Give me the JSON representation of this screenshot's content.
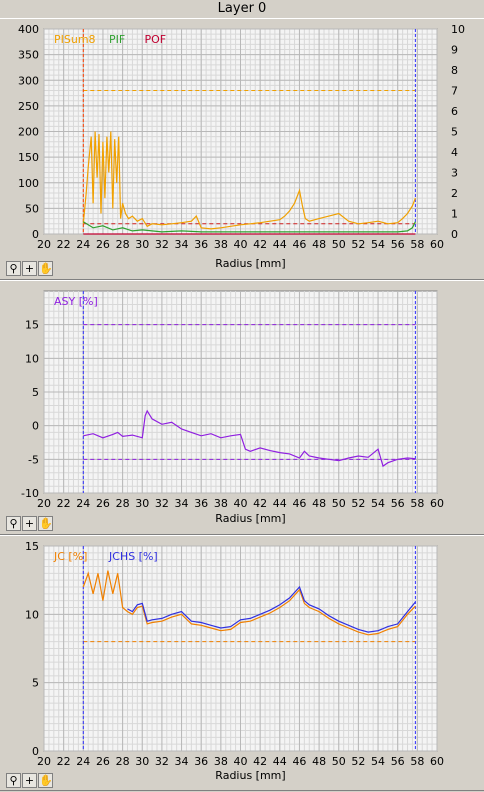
{
  "window": {
    "title": "Layer 0"
  },
  "toolbar": {
    "buttons": [
      {
        "name": "zoom-icon",
        "glyph": "⚲"
      },
      {
        "name": "crosshair-icon",
        "glyph": "+"
      },
      {
        "name": "hand-icon",
        "glyph": "✋"
      }
    ]
  },
  "chart_data": [
    {
      "type": "line",
      "xlabel": "Radius [mm]",
      "xlim": [
        20,
        60
      ],
      "xticks": [
        20,
        22,
        24,
        26,
        28,
        30,
        32,
        34,
        36,
        38,
        40,
        42,
        44,
        46,
        48,
        50,
        52,
        54,
        56,
        58,
        60
      ],
      "ylim": [
        0,
        400
      ],
      "yticks": [
        0,
        50,
        100,
        150,
        200,
        250,
        300,
        350,
        400
      ],
      "y2lim": [
        0,
        10
      ],
      "y2ticks": [
        0,
        1,
        2,
        3,
        4,
        5,
        6,
        7,
        8,
        9,
        10
      ],
      "grid": true,
      "legend": [
        "PISum8",
        "PIF",
        "POF"
      ],
      "legend_colors": [
        "#f0a000",
        "#30a030",
        "#c00030"
      ],
      "vlines": [
        {
          "x": 24,
          "color": "#ff4000"
        },
        {
          "x": 57.8,
          "color": "#3030ff"
        }
      ],
      "hlines": [
        {
          "y": 280,
          "color": "#f0a000",
          "x1": 24,
          "x2": 57.8
        },
        {
          "y": 20,
          "color": "#d02020",
          "x1": 24,
          "x2": 57.8
        }
      ],
      "series": [
        {
          "name": "PISum8",
          "color": "#f0a000",
          "axis": "left",
          "x": [
            24,
            24.3,
            24.5,
            24.8,
            25,
            25.2,
            25.4,
            25.6,
            25.8,
            26,
            26.2,
            26.4,
            26.6,
            26.8,
            27,
            27.2,
            27.4,
            27.6,
            27.8,
            28,
            28.3,
            28.6,
            29,
            29.5,
            30,
            30.5,
            31,
            32,
            33,
            34,
            35,
            35.5,
            36,
            37,
            38,
            39,
            40,
            41,
            42,
            43,
            44,
            44.5,
            45,
            45.5,
            46,
            46.3,
            46.6,
            47,
            48,
            49,
            50,
            51,
            52,
            53,
            54,
            55,
            56,
            56.5,
            57,
            57.5,
            57.8
          ],
          "y": [
            20,
            80,
            130,
            190,
            60,
            200,
            110,
            195,
            40,
            180,
            70,
            190,
            120,
            200,
            50,
            185,
            100,
            190,
            30,
            60,
            40,
            30,
            35,
            25,
            30,
            15,
            20,
            18,
            20,
            22,
            25,
            35,
            12,
            10,
            12,
            15,
            18,
            20,
            22,
            25,
            28,
            35,
            45,
            60,
            85,
            55,
            30,
            25,
            30,
            35,
            40,
            25,
            20,
            22,
            25,
            20,
            22,
            30,
            40,
            55,
            70
          ]
        },
        {
          "name": "PIF",
          "color": "#30a030",
          "axis": "right",
          "x": [
            24,
            25,
            26,
            27,
            28,
            29,
            30,
            32,
            34,
            36,
            38,
            40,
            42,
            44,
            46,
            48,
            50,
            52,
            54,
            56,
            57,
            57.5,
            57.8
          ],
          "y": [
            0.6,
            0.3,
            0.4,
            0.2,
            0.3,
            0.15,
            0.2,
            0.1,
            0.15,
            0.1,
            0.1,
            0.1,
            0.1,
            0.1,
            0.1,
            0.1,
            0.1,
            0.1,
            0.1,
            0.1,
            0.15,
            0.3,
            0.6
          ]
        },
        {
          "name": "POF",
          "color": "#c00030",
          "axis": "right",
          "x": [
            24,
            57.8
          ],
          "y": [
            0,
            0
          ]
        }
      ]
    },
    {
      "type": "line",
      "xlabel": "Radius [mm]",
      "xlim": [
        20,
        60
      ],
      "xticks": [
        20,
        22,
        24,
        26,
        28,
        30,
        32,
        34,
        36,
        38,
        40,
        42,
        44,
        46,
        48,
        50,
        52,
        54,
        56,
        58,
        60
      ],
      "ylim": [
        -10,
        20
      ],
      "yticks": [
        -10,
        -5,
        0,
        5,
        10,
        15
      ],
      "grid": true,
      "legend": [
        "ASY [%]"
      ],
      "legend_colors": [
        "#9020e0"
      ],
      "vlines": [
        {
          "x": 24,
          "color": "#3030ff"
        },
        {
          "x": 57.8,
          "color": "#3030ff"
        }
      ],
      "hlines": [
        {
          "y": 15,
          "color": "#9020e0",
          "x1": 24,
          "x2": 57.8
        },
        {
          "y": -5,
          "color": "#9020e0",
          "x1": 24,
          "x2": 57.8
        }
      ],
      "series": [
        {
          "name": "ASY [%]",
          "color": "#9020e0",
          "axis": "left",
          "x": [
            24,
            25,
            26,
            27,
            27.5,
            28,
            29,
            30,
            30.3,
            30.5,
            31,
            32,
            33,
            34,
            35,
            36,
            37,
            38,
            39,
            40,
            40.5,
            41,
            42,
            43,
            44,
            45,
            46,
            46.5,
            47,
            48,
            49,
            50,
            51,
            52,
            53,
            54,
            54.5,
            55,
            56,
            57,
            57.8
          ],
          "y": [
            -1.5,
            -1.2,
            -1.8,
            -1.3,
            -1.0,
            -1.6,
            -1.4,
            -1.8,
            1.5,
            2.2,
            1.0,
            0.2,
            0.5,
            -0.5,
            -1.0,
            -1.5,
            -1.2,
            -1.8,
            -1.5,
            -1.3,
            -3.5,
            -3.8,
            -3.3,
            -3.7,
            -4.0,
            -4.2,
            -4.8,
            -3.8,
            -4.5,
            -4.8,
            -5.0,
            -5.2,
            -4.8,
            -4.5,
            -4.7,
            -3.5,
            -6.0,
            -5.5,
            -5.0,
            -4.8,
            -4.9
          ]
        }
      ]
    },
    {
      "type": "line",
      "xlabel": "Radius [mm]",
      "xlim": [
        20,
        60
      ],
      "xticks": [
        20,
        22,
        24,
        26,
        28,
        30,
        32,
        34,
        36,
        38,
        40,
        42,
        44,
        46,
        48,
        50,
        52,
        54,
        56,
        58,
        60
      ],
      "ylim": [
        0,
        15
      ],
      "yticks": [
        0,
        5,
        10,
        15
      ],
      "grid": true,
      "legend": [
        "JC [%]",
        "JCHS [%]"
      ],
      "legend_colors": [
        "#f08000",
        "#3030e0"
      ],
      "vlines": [
        {
          "x": 24,
          "color": "#3030ff"
        },
        {
          "x": 57.8,
          "color": "#3030ff"
        }
      ],
      "hlines": [
        {
          "y": 8,
          "color": "#f08000",
          "x1": 24,
          "x2": 57.8
        }
      ],
      "series": [
        {
          "name": "JC [%]",
          "color": "#f08000",
          "axis": "left",
          "x": [
            24,
            24.5,
            25,
            25.5,
            26,
            26.5,
            27,
            27.5,
            28,
            28.5,
            29,
            29.5,
            30,
            30.5,
            31,
            32,
            33,
            34,
            35,
            36,
            37,
            38,
            39,
            40,
            41,
            42,
            43,
            44,
            45,
            46,
            46.5,
            47,
            48,
            49,
            50,
            51,
            52,
            53,
            54,
            55,
            56,
            57,
            57.8
          ],
          "y": [
            12,
            13,
            11.5,
            13,
            11,
            13.2,
            11.5,
            13,
            10.5,
            10.2,
            10.0,
            10.5,
            10.6,
            9.3,
            9.4,
            9.5,
            9.8,
            10,
            9.3,
            9.2,
            9,
            8.8,
            8.9,
            9.4,
            9.5,
            9.8,
            10.1,
            10.5,
            11,
            11.8,
            10.8,
            10.5,
            10.2,
            9.7,
            9.3,
            9.0,
            8.7,
            8.5,
            8.6,
            8.9,
            9.1,
            10,
            10.6
          ]
        },
        {
          "name": "JCHS [%]",
          "color": "#3030e0",
          "axis": "left",
          "x": [
            28.5,
            29,
            29.5,
            30,
            30.5,
            31,
            32,
            33,
            34,
            35,
            36,
            37,
            38,
            39,
            40,
            41,
            42,
            43,
            44,
            45,
            46,
            46.5,
            47,
            48,
            49,
            50,
            51,
            52,
            53,
            54,
            55,
            56,
            57,
            57.8
          ],
          "y": [
            10.4,
            10.2,
            10.7,
            10.8,
            9.5,
            9.6,
            9.7,
            10,
            10.2,
            9.5,
            9.4,
            9.2,
            9,
            9.1,
            9.6,
            9.7,
            10,
            10.3,
            10.7,
            11.2,
            12,
            11,
            10.7,
            10.4,
            9.9,
            9.5,
            9.2,
            8.9,
            8.7,
            8.8,
            9.1,
            9.3,
            10.2,
            10.9
          ]
        }
      ]
    }
  ]
}
